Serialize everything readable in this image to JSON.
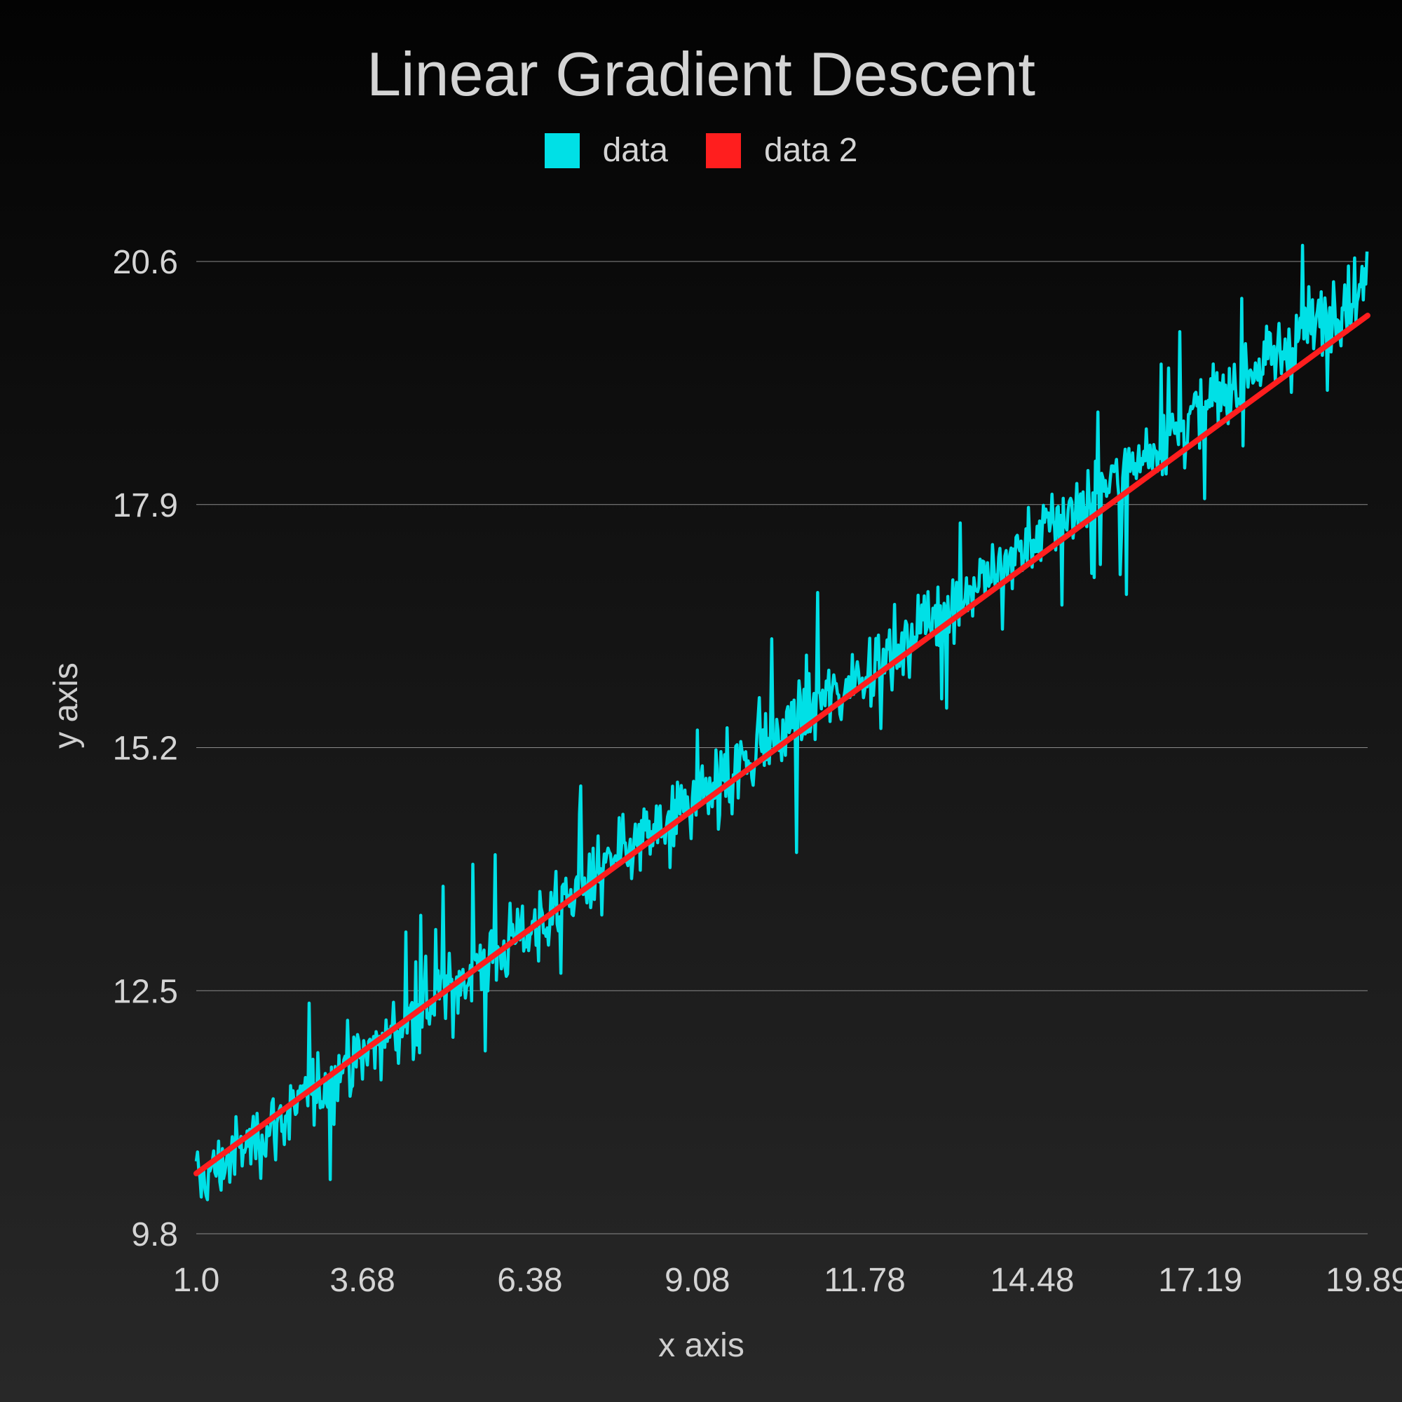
{
  "chart_data": {
    "type": "line",
    "title": "Linear Gradient Descent",
    "xlabel": "x axis",
    "ylabel": "y axis",
    "xlim": [
      1.0,
      19.89
    ],
    "ylim": [
      9.8,
      20.6
    ],
    "x_ticks": [
      "1.0",
      "3.68",
      "6.38",
      "9.08",
      "11.78",
      "14.48",
      "17.19",
      "19.89"
    ],
    "y_ticks": [
      "20.6",
      "17.9",
      "15.2",
      "12.5",
      "9.8"
    ],
    "grid": "horizontal",
    "legend_position": "top-center",
    "background": "dark",
    "series": [
      {
        "name": "data",
        "color": "#00e0e6",
        "description_kind": "noisy samples around y = 0.53x + 9.8",
        "x_start": 1.0,
        "x_end": 19.89,
        "x_step": 0.02,
        "trend_slope": 0.53,
        "trend_intercept": 9.82,
        "noise_amplitude": 0.6,
        "samples": [
          [
            1.0,
            10.55
          ],
          [
            1.5,
            11.0
          ],
          [
            2.0,
            10.4
          ],
          [
            2.5,
            11.6
          ],
          [
            3.0,
            11.2
          ],
          [
            3.5,
            12.0
          ],
          [
            4.0,
            11.9
          ],
          [
            4.5,
            12.5
          ],
          [
            5.0,
            12.9
          ],
          [
            5.5,
            12.6
          ],
          [
            6.0,
            13.4
          ],
          [
            6.5,
            13.1
          ],
          [
            7.0,
            13.9
          ],
          [
            7.5,
            13.6
          ],
          [
            8.0,
            14.3
          ],
          [
            8.5,
            14.0
          ],
          [
            9.0,
            14.6
          ],
          [
            9.5,
            14.4
          ],
          [
            10.0,
            15.1
          ],
          [
            10.5,
            14.8
          ],
          [
            11.0,
            15.5
          ],
          [
            11.5,
            15.4
          ],
          [
            12.0,
            16.1
          ],
          [
            12.5,
            15.8
          ],
          [
            13.0,
            16.6
          ],
          [
            13.5,
            16.3
          ],
          [
            14.0,
            17.0
          ],
          [
            14.5,
            16.8
          ],
          [
            15.0,
            17.5
          ],
          [
            15.5,
            17.3
          ],
          [
            16.0,
            18.0
          ],
          [
            16.5,
            17.7
          ],
          [
            17.0,
            18.5
          ],
          [
            17.5,
            18.2
          ],
          [
            18.0,
            19.1
          ],
          [
            18.5,
            18.8
          ],
          [
            19.0,
            19.6
          ],
          [
            19.5,
            19.4
          ],
          [
            19.89,
            19.6
          ]
        ]
      },
      {
        "name": "data 2",
        "color": "#ff1e1e",
        "values": [
          [
            1.0,
            10.47
          ],
          [
            19.89,
            20.0
          ]
        ]
      }
    ]
  }
}
